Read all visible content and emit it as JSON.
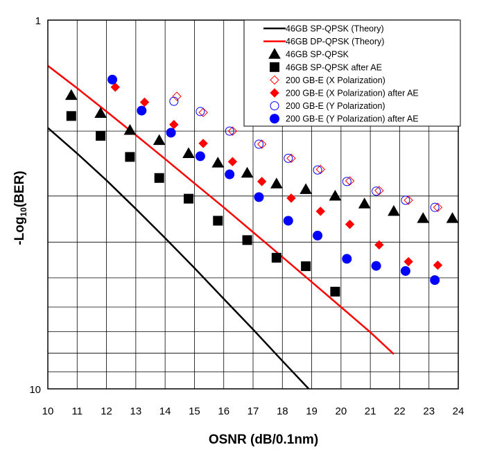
{
  "chart_data": {
    "type": "scatter",
    "title": "",
    "xlabel": "OSNR (dB/0.1nm)",
    "ylabel_main": "-Log",
    "ylabel_sub": "10",
    "ylabel_end": "(BER)",
    "xlim": [
      10,
      24
    ],
    "ylim": [
      1,
      10
    ],
    "y_scale": "log",
    "y_inverted": true,
    "x_ticks": [
      "10",
      "11",
      "12",
      "13",
      "14",
      "15",
      "16",
      "17",
      "18",
      "19",
      "20",
      "21",
      "22",
      "23",
      "24"
    ],
    "y_ticks": [
      "1",
      "10"
    ],
    "grid": true,
    "legend_position": "top-right",
    "series": [
      {
        "name": "46GB SP-QPSK (Theory)",
        "kind": "line",
        "color": "#000000",
        "x": [
          10,
          11,
          12,
          13,
          14,
          15,
          16,
          17,
          18,
          18.9
        ],
        "y": [
          1.96,
          2.3,
          2.72,
          3.25,
          3.9,
          4.7,
          5.7,
          6.9,
          8.4,
          10.0
        ]
      },
      {
        "name": "46GB DP-QPSK (Theory)",
        "kind": "line",
        "color": "#ff0000",
        "x": [
          10,
          11,
          12,
          13,
          14,
          15,
          16,
          17,
          18,
          19,
          20,
          21,
          21.8
        ],
        "y": [
          1.33,
          1.53,
          1.77,
          2.05,
          2.38,
          2.77,
          3.22,
          3.76,
          4.39,
          5.13,
          6.0,
          7.02,
          8.05
        ]
      },
      {
        "name": "46GB SP-QPSK",
        "kind": "marker",
        "marker": "triangle",
        "color": "#000000",
        "fill": true,
        "x": [
          10.8,
          11.8,
          12.8,
          13.8,
          14.8,
          15.8,
          16.8,
          17.8,
          18.8,
          19.8,
          20.8,
          21.8,
          22.8,
          23.8
        ],
        "y": [
          1.6,
          1.79,
          1.99,
          2.12,
          2.3,
          2.44,
          2.6,
          2.78,
          2.88,
          3.0,
          3.15,
          3.3,
          3.45,
          3.45
        ]
      },
      {
        "name": "46GB SP-QPSK after AE",
        "kind": "marker",
        "marker": "square",
        "color": "#000000",
        "fill": true,
        "x": [
          10.8,
          11.8,
          12.8,
          13.8,
          14.8,
          15.8,
          16.8,
          17.8,
          18.8,
          19.8
        ],
        "y": [
          1.82,
          2.06,
          2.35,
          2.68,
          3.05,
          3.5,
          3.95,
          4.41,
          4.65,
          5.45
        ]
      },
      {
        "name": "200 GB-E (X Polarization)",
        "kind": "marker",
        "marker": "diamond",
        "color": "#ff0000",
        "fill": false,
        "x": [
          14.4,
          15.3,
          16.3,
          17.3,
          18.3,
          19.3,
          20.3,
          21.3,
          22.3,
          23.3
        ],
        "y": [
          1.61,
          1.78,
          2.0,
          2.17,
          2.37,
          2.54,
          2.73,
          2.9,
          3.08,
          3.22
        ]
      },
      {
        "name": "200 GB-E (X Polarization) after AE",
        "kind": "marker",
        "marker": "diamond",
        "color": "#ff0000",
        "fill": true,
        "x": [
          12.3,
          13.3,
          14.3,
          15.3,
          16.3,
          17.3,
          18.3,
          19.3,
          20.3,
          21.3,
          22.3,
          23.3
        ],
        "y": [
          1.52,
          1.67,
          1.92,
          2.16,
          2.42,
          2.74,
          3.04,
          3.3,
          3.58,
          4.07,
          4.52,
          4.62
        ]
      },
      {
        "name": "200 GB-E (Y Polarization)",
        "kind": "marker",
        "marker": "circle",
        "color": "#0000ff",
        "fill": false,
        "x": [
          14.3,
          15.2,
          16.2,
          17.2,
          18.2,
          19.2,
          20.2,
          21.2,
          22.2,
          23.2
        ],
        "y": [
          1.66,
          1.77,
          2.0,
          2.17,
          2.37,
          2.55,
          2.74,
          2.91,
          3.08,
          3.22
        ]
      },
      {
        "name": "200 GB-E (Y Polarization) after AE",
        "kind": "marker",
        "marker": "circle",
        "color": "#0000ff",
        "fill": true,
        "x": [
          12.2,
          13.2,
          14.2,
          15.2,
          16.2,
          17.2,
          18.2,
          19.2,
          20.2,
          21.2,
          22.2,
          23.2
        ],
        "y": [
          1.45,
          1.76,
          2.02,
          2.34,
          2.62,
          3.02,
          3.5,
          3.84,
          4.44,
          4.64,
          4.79,
          5.07
        ]
      }
    ]
  }
}
